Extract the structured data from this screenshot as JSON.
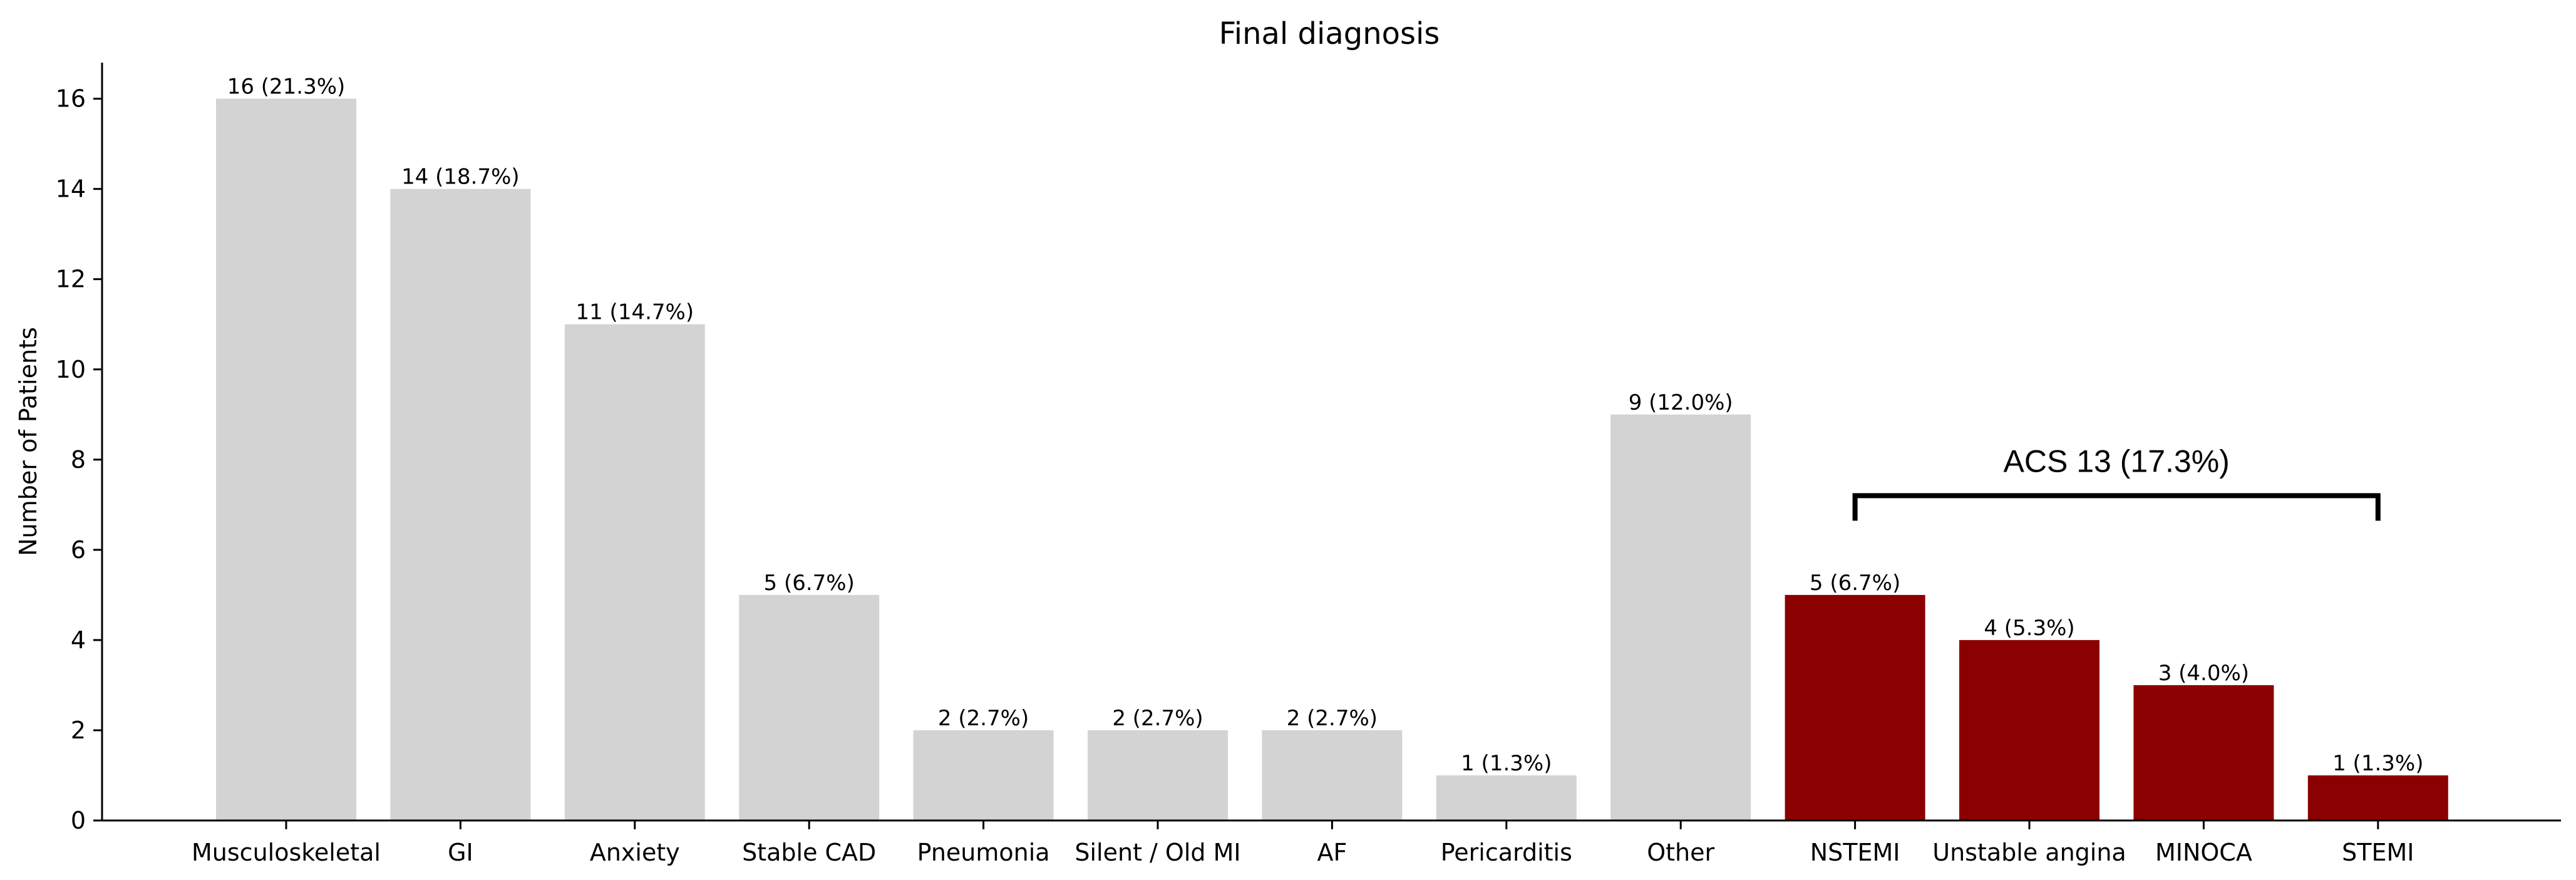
{
  "chart_data": {
    "type": "bar",
    "title": "Final diagnosis",
    "xlabel": "",
    "ylabel": "Number of Patients",
    "ylim": [
      0,
      16.8
    ],
    "yticks": [
      0,
      2,
      4,
      6,
      8,
      10,
      12,
      14,
      16
    ],
    "grid": false,
    "categories": [
      "Musculoskeletal",
      "GI",
      "Anxiety",
      "Stable CAD",
      "Pneumonia",
      "Silent / Old MI",
      "AF",
      "Pericarditis",
      "Other",
      "NSTEMI",
      "Unstable angina",
      "MINOCA",
      "STEMI"
    ],
    "values": [
      16,
      14,
      11,
      5,
      2,
      2,
      2,
      1,
      9,
      5,
      4,
      3,
      1
    ],
    "data_labels": [
      "16 (21.3%)",
      "14 (18.7%)",
      "11 (14.7%)",
      "5 (6.7%)",
      "2 (2.7%)",
      "2 (2.7%)",
      "2 (2.7%)",
      "1 (1.3%)",
      "9 (12.0%)",
      "5 (6.7%)",
      "4 (5.3%)",
      "3 (4.0%)",
      "1 (1.3%)"
    ],
    "groups": [
      "other",
      "other",
      "other",
      "other",
      "other",
      "other",
      "other",
      "other",
      "other",
      "acs",
      "acs",
      "acs",
      "acs"
    ],
    "colors": {
      "other": "#d3d3d3",
      "acs": "#8b0000"
    },
    "annotation": {
      "label": "ACS 13 (17.3%)",
      "from_category": "NSTEMI",
      "to_category": "STEMI",
      "bracket_level": 7.2
    }
  }
}
